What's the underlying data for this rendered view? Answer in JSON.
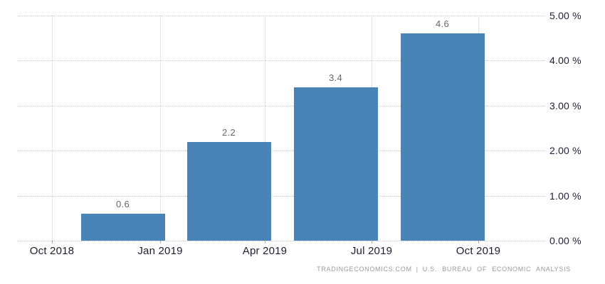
{
  "page": {
    "background": "#ffffff"
  },
  "chart_data": {
    "type": "bar",
    "title": "",
    "x_tick_labels": [
      "Oct 2018",
      "Jan 2019",
      "Apr 2019",
      "Jul 2019",
      "Oct 2019"
    ],
    "values": [
      0.6,
      2.2,
      3.4,
      4.6
    ],
    "value_labels": [
      "0.6",
      "2.2",
      "3.4",
      "4.6"
    ],
    "ylim": [
      0,
      5
    ],
    "yticks": [
      {
        "value": 0,
        "label": "0.00 %"
      },
      {
        "value": 1,
        "label": "1.00 %"
      },
      {
        "value": 2,
        "label": "2.00 %"
      },
      {
        "value": 3,
        "label": "3.00 %"
      },
      {
        "value": 4,
        "label": "4.00 %"
      },
      {
        "value": 5,
        "label": "5.00 %"
      }
    ],
    "grid": "dotted",
    "legend": "none",
    "y_axis_position": "right",
    "bar_color": "#4884b5",
    "value_label_color": "#666666",
    "axis_label_color": "#21213b"
  },
  "footer": {
    "source": "TRADINGECONOMICS.COM",
    "separator": "|",
    "attribution": "U.S. BUREAU OF ECONOMIC ANALYSIS"
  }
}
